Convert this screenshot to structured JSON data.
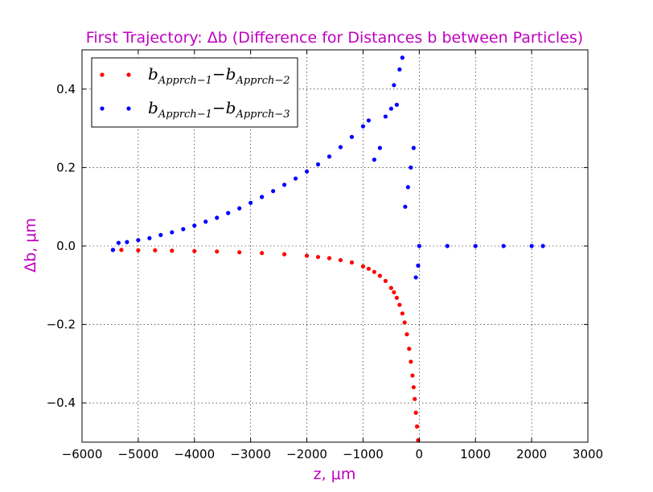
{
  "chart_data": {
    "type": "scatter",
    "title": "First Trajectory: Δb (Difference for Distances b between Particles)",
    "xlabel": "z, μm",
    "ylabel": "Δb, μm",
    "xlim": [
      -6000,
      3000
    ],
    "ylim": [
      -0.5,
      0.5
    ],
    "x_ticks": [
      -6000,
      -5000,
      -4000,
      -3000,
      -2000,
      -1000,
      0,
      1000,
      2000,
      3000
    ],
    "y_ticks": [
      -0.4,
      -0.2,
      0.0,
      0.2,
      0.4
    ],
    "x_tick_labels": [
      "−6000",
      "−5000",
      "−4000",
      "−3000",
      "−2000",
      "−1000",
      "0",
      "1000",
      "2000",
      "3000"
    ],
    "y_tick_labels": [
      "−0.4",
      "−0.2",
      "0.0",
      "0.2",
      "0.4"
    ],
    "grid": true,
    "legend_position": "top-left",
    "series": [
      {
        "name": "b_Apprch-1 − b_Apprch-2",
        "legend": {
          "base": "b",
          "sub1": "Apprch−1",
          "minus": "−",
          "sub2": "Apprch−2"
        },
        "color": "#ff0000",
        "x": [
          -5450,
          -5300,
          -5000,
          -4700,
          -4400,
          -4000,
          -3600,
          -3200,
          -2800,
          -2400,
          -2000,
          -1800,
          -1600,
          -1400,
          -1200,
          -1000,
          -900,
          -800,
          -700,
          -600,
          -500,
          -450,
          -400,
          -350,
          -300,
          -260,
          -220,
          -180,
          -150,
          -120,
          -100,
          -80,
          -60,
          -40,
          -20
        ],
        "y": [
          -0.01,
          -0.01,
          -0.011,
          -0.011,
          -0.012,
          -0.013,
          -0.014,
          -0.016,
          -0.018,
          -0.021,
          -0.025,
          -0.028,
          -0.031,
          -0.036,
          -0.042,
          -0.052,
          -0.058,
          -0.066,
          -0.076,
          -0.089,
          -0.107,
          -0.118,
          -0.132,
          -0.15,
          -0.172,
          -0.195,
          -0.225,
          -0.262,
          -0.295,
          -0.33,
          -0.36,
          -0.39,
          -0.425,
          -0.46,
          -0.495
        ]
      },
      {
        "name": "b_Apprch-1 − b_Apprch-3",
        "legend": {
          "base": "b",
          "sub1": "Apprch−1",
          "minus": "−",
          "sub2": "Apprch−3"
        },
        "color": "#0000ff",
        "x": [
          -5450,
          -5350,
          -5200,
          -5000,
          -4800,
          -4600,
          -4400,
          -4200,
          -4000,
          -3800,
          -3600,
          -3400,
          -3200,
          -3000,
          -2800,
          -2600,
          -2400,
          -2200,
          -2000,
          -1800,
          -1600,
          -1400,
          -1200,
          -1000,
          -900,
          -800,
          -700,
          -600,
          -500,
          -450,
          -400,
          -350,
          -300,
          -250,
          -200,
          -150,
          -100,
          -60,
          -20,
          0,
          500,
          1000,
          1500,
          2000,
          2200
        ],
        "y": [
          -0.01,
          0.008,
          0.01,
          0.015,
          0.02,
          0.028,
          0.035,
          0.043,
          0.052,
          0.062,
          0.072,
          0.084,
          0.096,
          0.11,
          0.125,
          0.14,
          0.156,
          0.172,
          0.19,
          0.208,
          0.228,
          0.252,
          0.278,
          0.305,
          0.32,
          0.22,
          0.25,
          0.33,
          0.35,
          0.41,
          0.36,
          0.45,
          0.48,
          0.1,
          0.15,
          0.2,
          0.25,
          -0.08,
          -0.05,
          0.0,
          0.0,
          0.0,
          0.0,
          0.0,
          0.0
        ]
      }
    ]
  }
}
